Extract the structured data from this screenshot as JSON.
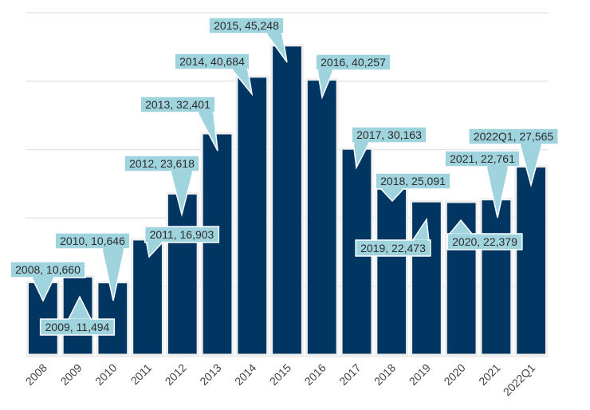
{
  "chart_data": {
    "type": "bar",
    "title": "",
    "xlabel": "",
    "ylabel": "",
    "ylim": [
      0,
      50000
    ],
    "grid": true,
    "gridlines_at": [
      10000,
      20000,
      30000,
      40000,
      50000
    ],
    "y_tick_labels_shown": false,
    "categories": [
      "2008",
      "2009",
      "2010",
      "2011",
      "2012",
      "2013",
      "2014",
      "2015",
      "2016",
      "2017",
      "2018",
      "2019",
      "2020",
      "2021",
      "2022Q1"
    ],
    "values": [
      10660,
      11494,
      10646,
      16903,
      23618,
      32401,
      40684,
      45248,
      40257,
      30163,
      25091,
      22473,
      22379,
      22761,
      27565
    ],
    "data_labels": [
      "2008, 10,660",
      "2009, 11,494",
      "2010, 10,646",
      "2011, 16,903",
      "2012, 23,618",
      "2013, 32,401",
      "2014, 40,684",
      "2015, 45,248",
      "2016, 40,257",
      "2017, 30,163",
      "2018, 25,091",
      "2019, 22,473",
      "2020, 22,379",
      "2021, 22,761",
      "2022Q1, 27,565"
    ],
    "colors": {
      "bar": "#003661",
      "callout": "#9fd4df"
    }
  }
}
